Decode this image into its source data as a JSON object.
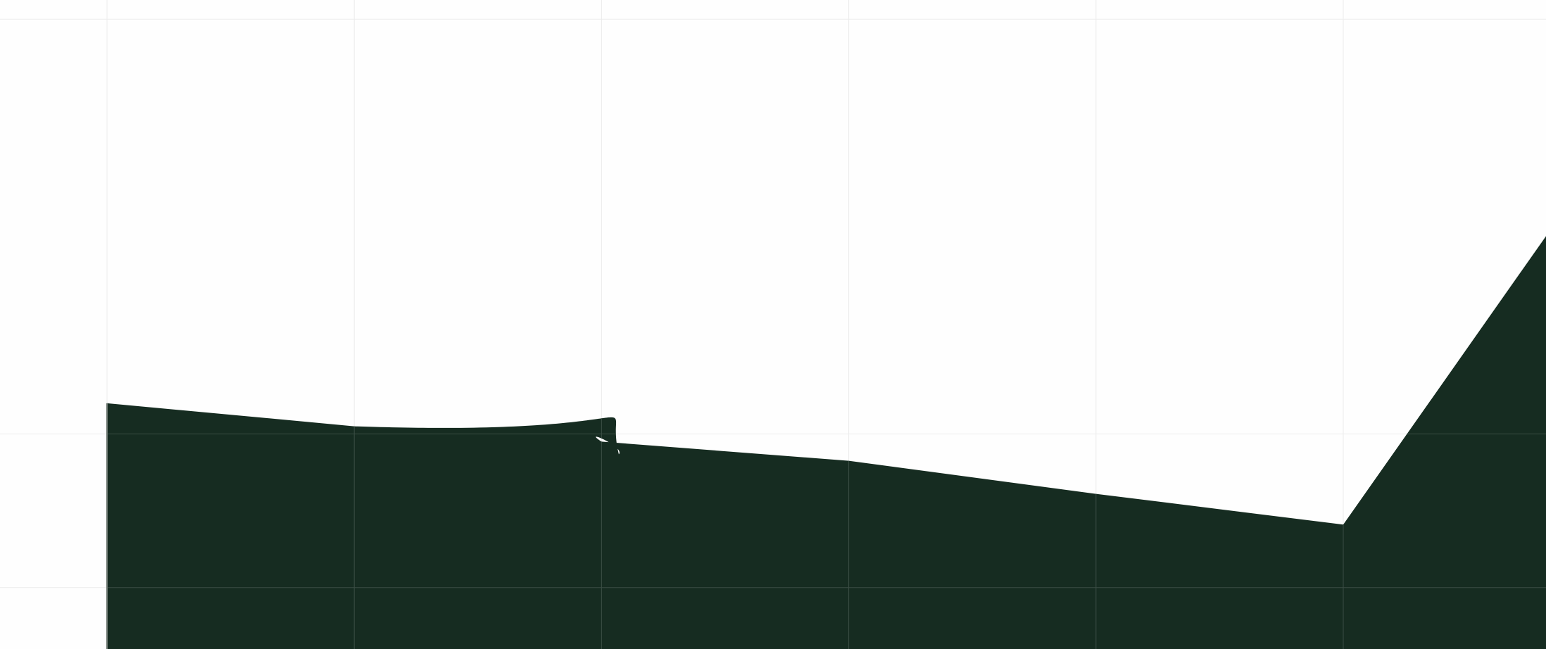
{
  "chart_data": {
    "type": "area",
    "x": [
      0,
      1,
      2,
      3,
      4,
      5,
      6
    ],
    "values": [
      2.4,
      2.1,
      1.9,
      1.65,
      1.22,
      0.82,
      5.4
    ],
    "special_segment": {
      "from_index": 1,
      "to_index": 2,
      "shape": "s-curve overshoot near x = 2"
    },
    "ylim": [
      -0.8,
      7.65
    ],
    "xlim": [
      0,
      5.82
    ],
    "x_gridlines": [
      0,
      1,
      2,
      3,
      4,
      5
    ],
    "y_gridlines": [
      0,
      2,
      7.4
    ],
    "grid": true,
    "legend": "none",
    "colors": {
      "fill": "#162c21",
      "grid_on_light": "#ececec",
      "grid_on_dark": "#3a4d44",
      "left_edge": "#6f7a73",
      "background": "#fefefe"
    }
  }
}
